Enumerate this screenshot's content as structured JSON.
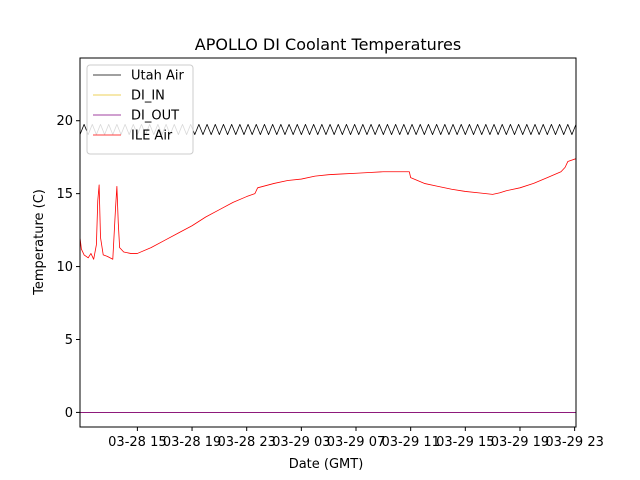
{
  "chart_data": {
    "type": "line",
    "title": "APOLLO DI Coolant Temperatures",
    "xlabel": "Date (GMT)",
    "ylabel": "Temperature (C)",
    "x_unit": "hours since 03-28 00:00 GMT",
    "xlim": [
      10.8,
      47.1
    ],
    "ylim": [
      -1,
      24.3
    ],
    "yticks": [
      0,
      5,
      10,
      15,
      20
    ],
    "xticks": [
      {
        "value": 15,
        "label": "03-28 15"
      },
      {
        "value": 19,
        "label": "03-28 19"
      },
      {
        "value": 23,
        "label": "03-28 23"
      },
      {
        "value": 27,
        "label": "03-29 03"
      },
      {
        "value": 31,
        "label": "03-29 07"
      },
      {
        "value": 35,
        "label": "03-29 11"
      },
      {
        "value": 39,
        "label": "03-29 15"
      },
      {
        "value": 43,
        "label": "03-29 19"
      },
      {
        "value": 47,
        "label": "03-29 23"
      }
    ],
    "legend_position": "upper-left",
    "grid": false,
    "series": [
      {
        "name": "Utah Air",
        "color": "#000000",
        "pattern": "oscillation",
        "center": 19.4,
        "amplitude": 0.35,
        "period_hours": 0.6,
        "range": [
          10.8,
          47.1
        ]
      },
      {
        "name": "DI_IN",
        "color": "#e8c020",
        "points": [
          [
            10.8,
            0
          ],
          [
            47.1,
            0
          ]
        ]
      },
      {
        "name": "DI_OUT",
        "color": "#800080",
        "points": [
          [
            10.8,
            0
          ],
          [
            47.1,
            0
          ]
        ]
      },
      {
        "name": "ILE Air",
        "color": "#ff0000",
        "points": [
          [
            10.8,
            12.0
          ],
          [
            10.9,
            11.2
          ],
          [
            11.1,
            10.8
          ],
          [
            11.4,
            10.6
          ],
          [
            11.6,
            10.9
          ],
          [
            11.8,
            10.5
          ],
          [
            12.0,
            11.5
          ],
          [
            12.1,
            14.5
          ],
          [
            12.2,
            15.6
          ],
          [
            12.3,
            12.0
          ],
          [
            12.5,
            10.8
          ],
          [
            12.8,
            10.7
          ],
          [
            13.2,
            10.5
          ],
          [
            13.4,
            14.0
          ],
          [
            13.5,
            15.5
          ],
          [
            13.6,
            13.0
          ],
          [
            13.7,
            11.3
          ],
          [
            14.0,
            11.0
          ],
          [
            14.5,
            10.9
          ],
          [
            15.0,
            10.9
          ],
          [
            16.0,
            11.3
          ],
          [
            17.0,
            11.8
          ],
          [
            18.0,
            12.3
          ],
          [
            19.0,
            12.8
          ],
          [
            20.0,
            13.4
          ],
          [
            21.0,
            13.9
          ],
          [
            22.0,
            14.4
          ],
          [
            23.0,
            14.8
          ],
          [
            23.6,
            15.0
          ],
          [
            23.8,
            15.4
          ],
          [
            25.0,
            15.7
          ],
          [
            26.0,
            15.9
          ],
          [
            27.0,
            16.0
          ],
          [
            28.0,
            16.2
          ],
          [
            29.0,
            16.3
          ],
          [
            30.0,
            16.35
          ],
          [
            31.0,
            16.4
          ],
          [
            32.0,
            16.45
          ],
          [
            33.0,
            16.5
          ],
          [
            34.0,
            16.5
          ],
          [
            34.9,
            16.5
          ],
          [
            35.0,
            16.1
          ],
          [
            35.5,
            15.9
          ],
          [
            36.0,
            15.7
          ],
          [
            37.0,
            15.5
          ],
          [
            38.0,
            15.3
          ],
          [
            39.0,
            15.15
          ],
          [
            40.0,
            15.05
          ],
          [
            40.5,
            15.0
          ],
          [
            41.0,
            14.95
          ],
          [
            41.5,
            15.05
          ],
          [
            42.0,
            15.2
          ],
          [
            43.0,
            15.4
          ],
          [
            44.0,
            15.7
          ],
          [
            45.0,
            16.1
          ],
          [
            46.0,
            16.5
          ],
          [
            46.3,
            16.8
          ],
          [
            46.5,
            17.2
          ],
          [
            47.1,
            17.4
          ]
        ]
      }
    ]
  }
}
